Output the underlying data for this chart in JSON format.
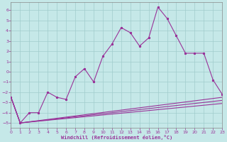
{
  "xlabel": "Windchill (Refroidissement éolien,°C)",
  "bg_color": "#c5e8e8",
  "grid_color": "#a0cccc",
  "line_color": "#993399",
  "xlim": [
    0,
    23
  ],
  "ylim": [
    -5.5,
    6.8
  ],
  "xticks": [
    0,
    1,
    2,
    3,
    4,
    5,
    6,
    7,
    8,
    9,
    10,
    11,
    12,
    13,
    14,
    15,
    16,
    17,
    18,
    19,
    20,
    21,
    22,
    23
  ],
  "yticks": [
    -5,
    -4,
    -3,
    -2,
    -1,
    0,
    1,
    2,
    3,
    4,
    5,
    6
  ],
  "line_main": {
    "x": [
      0,
      1,
      2,
      3,
      4,
      5,
      6,
      7,
      8,
      9,
      10,
      11,
      12,
      13,
      14,
      15,
      16,
      17,
      18,
      19,
      20,
      21,
      22,
      23
    ],
    "y": [
      -2.5,
      -5.0,
      -4.0,
      -4.0,
      -2.0,
      -2.5,
      -2.7,
      -0.5,
      0.3,
      -1.0,
      1.5,
      2.7,
      4.3,
      3.8,
      2.5,
      3.3,
      6.3,
      5.2,
      3.5,
      1.8,
      1.8,
      1.8,
      -0.8,
      -2.2
    ]
  },
  "line_ref1": {
    "x": [
      0,
      1,
      23
    ],
    "y": [
      -2.5,
      -5.0,
      -2.5
    ]
  },
  "line_ref2": {
    "x": [
      0,
      1,
      23
    ],
    "y": [
      -2.5,
      -5.0,
      -2.8
    ]
  },
  "line_ref3": {
    "x": [
      0,
      1,
      23
    ],
    "y": [
      -2.5,
      -5.0,
      -3.1
    ]
  }
}
